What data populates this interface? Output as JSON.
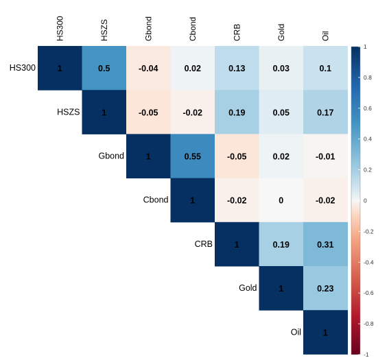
{
  "chart_data": {
    "type": "heatmap",
    "variables": [
      "HS300",
      "HSZS",
      "Gbond",
      "Cbond",
      "CRB",
      "Gold",
      "Oil"
    ],
    "matrix": [
      [
        1,
        0.5,
        -0.04,
        0.02,
        0.13,
        0.03,
        0.1
      ],
      [
        null,
        1,
        -0.05,
        -0.02,
        0.19,
        0.05,
        0.17
      ],
      [
        null,
        null,
        1,
        0.55,
        -0.05,
        0.02,
        -0.01
      ],
      [
        null,
        null,
        null,
        1,
        -0.02,
        0,
        -0.02
      ],
      [
        null,
        null,
        null,
        null,
        1,
        0.19,
        0.31
      ],
      [
        null,
        null,
        null,
        null,
        null,
        1,
        0.23
      ],
      [
        null,
        null,
        null,
        null,
        null,
        null,
        1
      ]
    ],
    "cell_labels": [
      [
        "1",
        "0.5",
        "-0.04",
        "0.02",
        "0.13",
        "0.03",
        "0.1"
      ],
      [
        "",
        "1",
        "-0.05",
        "-0.02",
        "0.19",
        "0.05",
        "0.17"
      ],
      [
        "",
        "",
        "1",
        "0.55",
        "-0.05",
        "0.02",
        "-0.01"
      ],
      [
        "",
        "",
        "",
        "1",
        "-0.02",
        "0",
        "-0.02"
      ],
      [
        "",
        "",
        "",
        "",
        "1",
        "0.19",
        "0.31"
      ],
      [
        "",
        "",
        "",
        "",
        "",
        "1",
        "0.23"
      ],
      [
        "",
        "",
        "",
        "",
        "",
        "",
        "1"
      ]
    ],
    "layout": "upper-triangle",
    "colorbar": {
      "range": [
        -1,
        1
      ],
      "ticks": [
        "1",
        "0.8",
        "0.6",
        "0.4",
        "0.2",
        "0",
        "-0.2",
        "-0.4",
        "-0.6",
        "-0.8",
        "-1"
      ],
      "tick_values": [
        1,
        0.8,
        0.6,
        0.4,
        0.2,
        0,
        -0.2,
        -0.4,
        -0.6,
        -0.8,
        -1
      ],
      "colors": {
        "negative": "#67001F",
        "zero": "#F7F7F7",
        "positive": "#053061"
      }
    },
    "title": "",
    "xlabel": "",
    "ylabel": ""
  }
}
